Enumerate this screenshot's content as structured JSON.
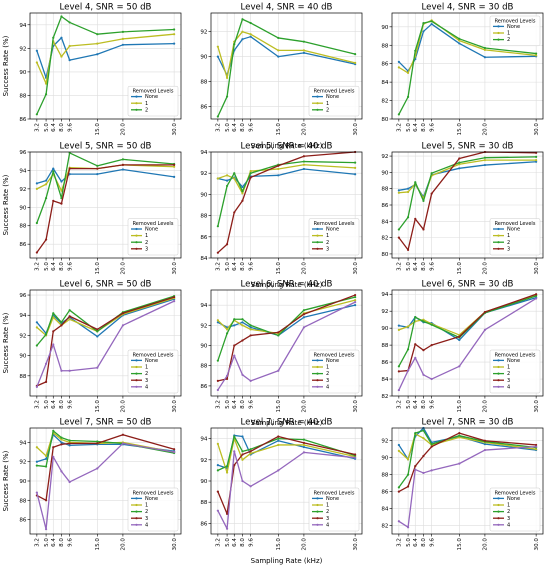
{
  "figure": {
    "xlabel": "Sampling Rate (kHz)",
    "ylabel": "Success Rate (%)",
    "x_ticks": [
      "3.2",
      "5.0",
      "6.4",
      "8.0",
      "9.6",
      "15.0",
      "20.0",
      "30.0"
    ],
    "legend_title": "Removed Levels"
  },
  "series_colors": {
    "None": "#1f77b4",
    "1": "#bcbd22",
    "2": "#2ca02c",
    "3": "#8c1d18",
    "4": "#9467bd"
  },
  "chart_data": [
    {
      "type": "line",
      "title": "Level 4, SNR = 50 dB",
      "x": [
        3.2,
        5.0,
        6.4,
        8.0,
        9.6,
        15.0,
        20.0,
        30.0
      ],
      "ylim": [
        86,
        95
      ],
      "yticks": [
        86,
        88,
        90,
        92,
        94
      ],
      "legend": "bottom-right",
      "series": [
        {
          "name": "None",
          "values": [
            91.8,
            89.5,
            92.2,
            92.9,
            91.0,
            91.5,
            92.3,
            92.4
          ]
        },
        {
          "name": "1",
          "values": [
            90.8,
            89.0,
            92.6,
            91.3,
            92.2,
            92.4,
            92.8,
            93.2
          ]
        },
        {
          "name": "2",
          "values": [
            86.4,
            88.1,
            92.9,
            94.7,
            94.2,
            93.2,
            93.4,
            93.6
          ]
        }
      ]
    },
    {
      "type": "line",
      "title": "Level 4, SNR = 40 dB",
      "x": [
        3.2,
        5.0,
        6.4,
        8.0,
        9.6,
        15.0,
        20.0,
        30.0
      ],
      "ylim": [
        85,
        93.5
      ],
      "yticks": [
        86,
        88,
        90,
        92
      ],
      "legend": "bottom-right",
      "series": [
        {
          "name": "None",
          "values": [
            90.0,
            88.5,
            90.5,
            91.4,
            91.6,
            90.0,
            90.3,
            89.4
          ]
        },
        {
          "name": "1",
          "values": [
            90.8,
            88.3,
            91.2,
            92.0,
            91.8,
            90.5,
            90.5,
            89.5
          ]
        },
        {
          "name": "2",
          "values": [
            85.2,
            86.8,
            91.0,
            93.0,
            92.7,
            91.5,
            91.2,
            90.2
          ]
        }
      ]
    },
    {
      "type": "line",
      "title": "Level 4, SNR = 30 dB",
      "x": [
        3.2,
        5.0,
        6.4,
        8.0,
        9.6,
        15.0,
        20.0,
        30.0
      ],
      "ylim": [
        80,
        91.5
      ],
      "yticks": [
        80,
        82,
        84,
        86,
        88,
        90
      ],
      "legend": "top-right",
      "series": [
        {
          "name": "None",
          "values": [
            86.2,
            85.2,
            86.5,
            89.5,
            90.3,
            88.2,
            86.7,
            86.8
          ]
        },
        {
          "name": "1",
          "values": [
            85.6,
            85.0,
            86.8,
            90.3,
            90.7,
            88.5,
            87.5,
            86.9
          ]
        },
        {
          "name": "2",
          "values": [
            80.5,
            82.4,
            87.4,
            90.4,
            90.6,
            88.7,
            87.7,
            87.1
          ]
        }
      ]
    },
    {
      "type": "line",
      "title": "Level 5, SNR = 50 dB",
      "x": [
        3.2,
        5.0,
        6.4,
        8.0,
        9.6,
        15.0,
        20.0,
        30.0
      ],
      "ylim": [
        84.5,
        96
      ],
      "yticks": [
        86,
        88,
        90,
        92,
        94,
        96
      ],
      "legend": "bottom-right",
      "series": [
        {
          "name": "None",
          "values": [
            92.6,
            92.9,
            94.2,
            92.8,
            93.6,
            93.6,
            94.1,
            93.3
          ]
        },
        {
          "name": "1",
          "values": [
            92.0,
            92.5,
            93.6,
            91.8,
            94.3,
            94.2,
            94.6,
            94.4
          ]
        },
        {
          "name": "2",
          "values": [
            88.3,
            91.0,
            93.9,
            91.0,
            95.9,
            94.5,
            95.2,
            94.7
          ]
        },
        {
          "name": "3",
          "values": [
            85.1,
            86.5,
            90.7,
            90.4,
            94.2,
            94.2,
            94.6,
            94.6
          ]
        }
      ]
    },
    {
      "type": "line",
      "title": "Level 5, SNR = 40 dB",
      "x": [
        3.2,
        5.0,
        6.4,
        8.0,
        9.6,
        15.0,
        20.0,
        30.0
      ],
      "ylim": [
        84,
        94
      ],
      "yticks": [
        84,
        86,
        88,
        90,
        92,
        94
      ],
      "legend": "bottom-right",
      "series": [
        {
          "name": "None",
          "values": [
            91.5,
            91.3,
            91.6,
            90.7,
            91.7,
            91.8,
            92.4,
            91.9
          ]
        },
        {
          "name": "1",
          "values": [
            91.5,
            91.8,
            91.5,
            90.1,
            92.2,
            92.4,
            92.8,
            92.5
          ]
        },
        {
          "name": "2",
          "values": [
            87.0,
            90.8,
            92.0,
            90.3,
            92.0,
            92.8,
            93.1,
            93.0
          ]
        },
        {
          "name": "3",
          "values": [
            84.5,
            85.3,
            88.3,
            89.4,
            91.6,
            92.7,
            93.6,
            94.0
          ]
        }
      ]
    },
    {
      "type": "line",
      "title": "Level 5, SNR = 30 dB",
      "x": [
        3.2,
        5.0,
        6.4,
        8.0,
        9.6,
        15.0,
        20.0,
        30.0
      ],
      "ylim": [
        79.5,
        92.5
      ],
      "yticks": [
        80,
        82,
        84,
        86,
        88,
        90,
        92
      ],
      "legend": "bottom-right",
      "series": [
        {
          "name": "None",
          "values": [
            87.8,
            88.0,
            88.5,
            87.0,
            89.7,
            90.5,
            90.9,
            91.3
          ]
        },
        {
          "name": "1",
          "values": [
            87.5,
            87.6,
            88.6,
            86.8,
            89.6,
            91.0,
            91.5,
            91.5
          ]
        },
        {
          "name": "2",
          "values": [
            83.0,
            84.5,
            88.8,
            86.5,
            89.9,
            91.2,
            91.8,
            91.9
          ]
        },
        {
          "name": "3",
          "values": [
            82.0,
            80.5,
            84.3,
            83.0,
            87.4,
            91.7,
            92.5,
            92.4
          ]
        }
      ]
    },
    {
      "type": "line",
      "title": "Level 6, SNR = 50 dB",
      "x": [
        3.2,
        5.0,
        6.4,
        8.0,
        9.6,
        15.0,
        20.0,
        30.0
      ],
      "ylim": [
        86,
        96.5
      ],
      "yticks": [
        88,
        90,
        92,
        94,
        96
      ],
      "legend": "bottom-right",
      "series": [
        {
          "name": "None",
          "values": [
            93.3,
            92.2,
            94.0,
            93.2,
            93.8,
            91.9,
            94.0,
            95.6
          ]
        },
        {
          "name": "1",
          "values": [
            92.8,
            92.0,
            93.8,
            93.0,
            93.6,
            92.4,
            94.1,
            95.7
          ]
        },
        {
          "name": "2",
          "values": [
            91.0,
            92.1,
            94.2,
            93.3,
            94.5,
            92.4,
            94.3,
            95.9
          ]
        },
        {
          "name": "3",
          "values": [
            87.0,
            87.4,
            92.4,
            93.0,
            93.9,
            92.6,
            94.2,
            95.8
          ]
        },
        {
          "name": "4",
          "values": [
            86.9,
            89.2,
            91.1,
            88.5,
            88.5,
            88.8,
            93.0,
            95.4
          ]
        }
      ]
    },
    {
      "type": "line",
      "title": "Level 6, SNR = 40 dB",
      "x": [
        3.2,
        5.0,
        6.4,
        8.0,
        9.6,
        15.0,
        20.0,
        30.0
      ],
      "ylim": [
        85,
        95.5
      ],
      "yticks": [
        86,
        88,
        90,
        92,
        94
      ],
      "legend": "bottom-right",
      "series": [
        {
          "name": "None",
          "values": [
            92.3,
            91.8,
            92.0,
            92.3,
            91.8,
            91.0,
            92.8,
            94.0
          ]
        },
        {
          "name": "1",
          "values": [
            92.5,
            91.6,
            92.5,
            92.0,
            91.6,
            91.2,
            93.2,
            94.5
          ]
        },
        {
          "name": "2",
          "values": [
            88.5,
            91.2,
            92.6,
            92.6,
            92.0,
            91.0,
            93.5,
            94.8
          ]
        },
        {
          "name": "3",
          "values": [
            86.5,
            86.7,
            90.0,
            90.5,
            91.0,
            91.3,
            93.1,
            95.0
          ]
        },
        {
          "name": "4",
          "values": [
            85.6,
            87.0,
            89.0,
            87.1,
            86.5,
            87.5,
            91.8,
            94.3
          ]
        }
      ]
    },
    {
      "type": "line",
      "title": "Level 6, SNR = 30 dB",
      "x": [
        3.2,
        5.0,
        6.4,
        8.0,
        9.6,
        15.0,
        20.0,
        30.0
      ],
      "ylim": [
        82,
        94.5
      ],
      "yticks": [
        82,
        84,
        86,
        88,
        90,
        92,
        94
      ],
      "legend": "bottom-right",
      "series": [
        {
          "name": "None",
          "values": [
            90.3,
            90.1,
            91.3,
            90.7,
            90.6,
            88.6,
            91.8,
            93.6
          ]
        },
        {
          "name": "1",
          "values": [
            89.8,
            90.2,
            90.8,
            91.0,
            90.5,
            89.2,
            91.9,
            93.9
          ]
        },
        {
          "name": "2",
          "values": [
            85.5,
            87.5,
            91.3,
            90.8,
            90.4,
            88.9,
            91.8,
            93.8
          ]
        },
        {
          "name": "3",
          "values": [
            84.9,
            85.0,
            88.1,
            87.4,
            88.0,
            89.0,
            91.9,
            94.0
          ]
        },
        {
          "name": "4",
          "values": [
            82.7,
            85.0,
            86.5,
            84.5,
            84.0,
            85.5,
            89.8,
            93.5
          ]
        }
      ]
    },
    {
      "type": "line",
      "title": "Level 7, SNR = 50 dB",
      "x": [
        3.2,
        5.0,
        6.4,
        8.0,
        9.6,
        15.0,
        20.0,
        30.0
      ],
      "ylim": [
        84.5,
        95.5
      ],
      "yticks": [
        86,
        88,
        90,
        92,
        94
      ],
      "legend": "bottom-right",
      "series": [
        {
          "name": "None",
          "values": [
            92.0,
            92.3,
            94.8,
            94.0,
            93.7,
            93.8,
            93.8,
            93.1
          ]
        },
        {
          "name": "1",
          "values": [
            93.5,
            92.6,
            95.0,
            94.3,
            94.0,
            93.9,
            94.0,
            93.0
          ]
        },
        {
          "name": "2",
          "values": [
            91.6,
            91.5,
            95.2,
            94.5,
            94.2,
            94.1,
            93.9,
            92.9
          ]
        },
        {
          "name": "3",
          "values": [
            88.5,
            88.0,
            93.5,
            93.8,
            93.9,
            93.9,
            94.8,
            93.3
          ]
        },
        {
          "name": "4",
          "values": [
            88.8,
            85.0,
            92.5,
            91.0,
            89.9,
            91.3,
            93.9,
            93.0
          ]
        }
      ]
    },
    {
      "type": "line",
      "title": "Level 7, SNR = 40 dB",
      "x": [
        3.2,
        5.0,
        6.4,
        8.0,
        9.6,
        15.0,
        20.0,
        30.0
      ],
      "ylim": [
        85,
        95
      ],
      "yticks": [
        86,
        88,
        90,
        92,
        94
      ],
      "legend": "bottom-right",
      "series": [
        {
          "name": "None",
          "values": [
            91.5,
            91.2,
            94.3,
            94.2,
            92.5,
            93.8,
            93.2,
            92.1
          ]
        },
        {
          "name": "1",
          "values": [
            93.5,
            90.8,
            94.0,
            92.0,
            92.6,
            93.4,
            93.4,
            92.3
          ]
        },
        {
          "name": "2",
          "values": [
            91.0,
            91.4,
            94.2,
            92.8,
            93.0,
            94.0,
            93.9,
            92.4
          ]
        },
        {
          "name": "3",
          "values": [
            89.0,
            86.9,
            91.5,
            92.5,
            92.8,
            94.2,
            93.6,
            92.5
          ]
        },
        {
          "name": "4",
          "values": [
            87.2,
            85.5,
            92.8,
            90.0,
            89.5,
            91.0,
            92.7,
            92.2
          ]
        }
      ]
    },
    {
      "type": "line",
      "title": "Level 7, SNR = 30 dB",
      "x": [
        3.2,
        5.0,
        6.4,
        8.0,
        9.6,
        15.0,
        20.0,
        30.0
      ],
      "ylim": [
        81,
        93.5
      ],
      "yticks": [
        82,
        84,
        86,
        88,
        90,
        92
      ],
      "legend": "bottom-right",
      "series": [
        {
          "name": "None",
          "values": [
            91.5,
            89.8,
            92.5,
            93.5,
            91.8,
            92.5,
            91.6,
            90.9
          ]
        },
        {
          "name": "1",
          "values": [
            90.8,
            89.8,
            92.8,
            92.3,
            91.5,
            92.4,
            91.8,
            91.0
          ]
        },
        {
          "name": "2",
          "values": [
            86.5,
            88.0,
            92.9,
            93.2,
            91.6,
            92.6,
            91.9,
            91.2
          ]
        },
        {
          "name": "3",
          "values": [
            86.0,
            86.6,
            89.0,
            90.2,
            91.3,
            92.9,
            92.0,
            91.5
          ]
        },
        {
          "name": "4",
          "values": [
            82.5,
            81.8,
            88.6,
            88.2,
            88.5,
            89.3,
            90.9,
            91.3
          ]
        }
      ]
    }
  ]
}
